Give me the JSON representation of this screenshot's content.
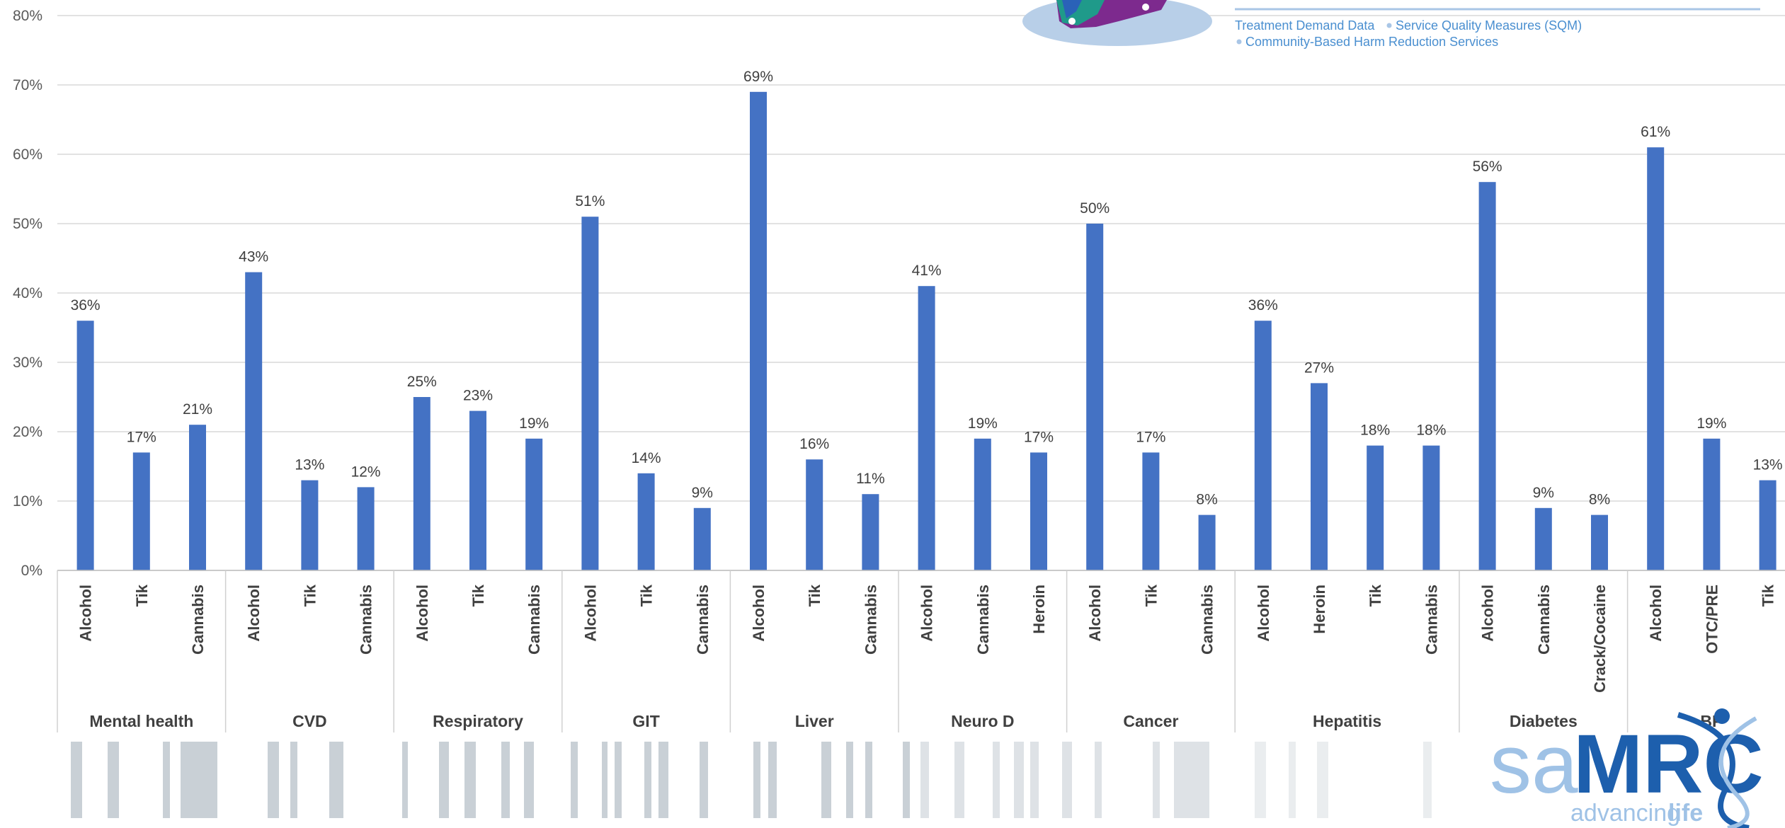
{
  "chart_data": {
    "type": "bar",
    "ylim": [
      0,
      80
    ],
    "yticks": [
      "0%",
      "10%",
      "20%",
      "30%",
      "40%",
      "50%",
      "60%",
      "70%",
      "80%"
    ],
    "grid": true,
    "bar_color": "#4472c4",
    "groups": [
      {
        "name": "Mental health",
        "categories": [
          "Alcohol",
          "Tik",
          "Cannabis"
        ],
        "values": [
          36,
          17,
          21
        ]
      },
      {
        "name": "CVD",
        "categories": [
          "Alcohol",
          "Tik",
          "Cannabis"
        ],
        "values": [
          43,
          13,
          12
        ]
      },
      {
        "name": "Respiratory",
        "categories": [
          "Alcohol",
          "Tik",
          "Cannabis"
        ],
        "values": [
          25,
          23,
          19
        ]
      },
      {
        "name": "GIT",
        "categories": [
          "Alcohol",
          "Tik",
          "Cannabis"
        ],
        "values": [
          51,
          14,
          9
        ]
      },
      {
        "name": "Liver",
        "categories": [
          "Alcohol",
          "Tik",
          "Cannabis"
        ],
        "values": [
          69,
          16,
          11
        ]
      },
      {
        "name": "Neuro D",
        "categories": [
          "Alcohol",
          "Cannabis",
          "Heroin"
        ],
        "values": [
          41,
          19,
          17
        ]
      },
      {
        "name": "Cancer",
        "categories": [
          "Alcohol",
          "Tik",
          "Cannabis"
        ],
        "values": [
          50,
          17,
          8
        ]
      },
      {
        "name": "Hepatitis",
        "categories": [
          "Alcohol",
          "Heroin",
          "Tik",
          "Cannabis"
        ],
        "values": [
          36,
          27,
          18,
          18
        ]
      },
      {
        "name": "Diabetes",
        "categories": [
          "Alcohol",
          "Cannabis",
          "Crack/Cocaine"
        ],
        "values": [
          56,
          9,
          8
        ]
      },
      {
        "name": "BP",
        "categories": [
          "Alcohol",
          "OTC/PRE",
          "Tik"
        ],
        "values": [
          61,
          19,
          13
        ]
      }
    ],
    "value_suffix": "%"
  },
  "overlay_legend": {
    "line1_a": "Treatment Demand Data",
    "line1_b": "Service Quality Measures (SQM)",
    "line2": "Community-Based Harm Reduction Services",
    "text_color": "#4a8fd0"
  },
  "logo": {
    "sa": "sa",
    "mrc": "MRC",
    "tagline_a": "advancing",
    "tagline_b": "life"
  }
}
